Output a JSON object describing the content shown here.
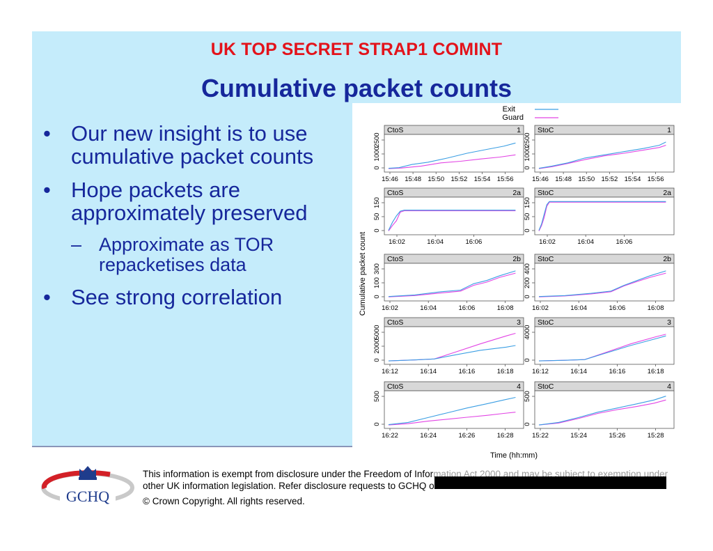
{
  "header": {
    "classification": "UK TOP SECRET STRAP1 COMINT",
    "title": "Cumulative packet counts"
  },
  "bullets": [
    {
      "text": "Our new insight is to use cumulative packet counts"
    },
    {
      "text": "Hope packets are approximately preserved",
      "sub": [
        {
          "text": "Approximate as TOR repacketises data"
        }
      ]
    },
    {
      "text": "See strong correlation"
    }
  ],
  "bullet_glyph": "•",
  "sub_bullet_glyph": "–",
  "chart_data": {
    "type": "line",
    "ylabel": "Cumulative packet count",
    "xlabel": "Time (hh:mm)",
    "legend": {
      "placement": "top-right",
      "entries": [
        {
          "name": "Exit",
          "color": "#3a9ee3"
        },
        {
          "name": "Guard",
          "color": "#e244e4"
        }
      ]
    },
    "grid": false,
    "panels": [
      {
        "left": "CtoS",
        "right": "1",
        "yticks": [
          "0",
          "1000",
          "2500"
        ],
        "xticks": [
          "15:46",
          "15:48",
          "15:50",
          "15:52",
          "15:54",
          "15:56"
        ],
        "exit": [
          [
            0,
            0.03
          ],
          [
            0.08,
            0.05
          ],
          [
            0.18,
            0.15
          ],
          [
            0.3,
            0.22
          ],
          [
            0.45,
            0.35
          ],
          [
            0.6,
            0.5
          ],
          [
            0.75,
            0.62
          ],
          [
            0.88,
            0.72
          ],
          [
            0.97,
            0.82
          ]
        ],
        "guard": [
          [
            0,
            0.02
          ],
          [
            0.1,
            0.04
          ],
          [
            0.25,
            0.1
          ],
          [
            0.4,
            0.2
          ],
          [
            0.55,
            0.25
          ],
          [
            0.7,
            0.32
          ],
          [
            0.85,
            0.38
          ],
          [
            0.97,
            0.45
          ]
        ]
      },
      {
        "left": "StoC",
        "right": "1",
        "yticks": [
          "0",
          "1000",
          "2500"
        ],
        "xticks": [
          "15:46",
          "15:48",
          "15:50",
          "15:52",
          "15:54",
          "15:56"
        ],
        "exit": [
          [
            0,
            0.03
          ],
          [
            0.1,
            0.1
          ],
          [
            0.22,
            0.2
          ],
          [
            0.35,
            0.35
          ],
          [
            0.5,
            0.45
          ],
          [
            0.65,
            0.55
          ],
          [
            0.8,
            0.65
          ],
          [
            0.92,
            0.75
          ],
          [
            0.97,
            0.85
          ]
        ],
        "guard": [
          [
            0,
            0.02
          ],
          [
            0.1,
            0.08
          ],
          [
            0.22,
            0.18
          ],
          [
            0.35,
            0.3
          ],
          [
            0.5,
            0.42
          ],
          [
            0.65,
            0.5
          ],
          [
            0.8,
            0.6
          ],
          [
            0.92,
            0.68
          ],
          [
            0.97,
            0.75
          ]
        ]
      },
      {
        "left": "CtoS",
        "right": "2a",
        "yticks": [
          "0",
          "50",
          "150"
        ],
        "xticks": [
          "16:02",
          "16:04",
          "16:06"
        ],
        "exit": [
          [
            0,
            0.05
          ],
          [
            0.03,
            0.3
          ],
          [
            0.06,
            0.5
          ],
          [
            0.09,
            0.65
          ],
          [
            0.12,
            0.68
          ],
          [
            0.97,
            0.68
          ]
        ],
        "guard": [
          [
            0,
            0.03
          ],
          [
            0.03,
            0.2
          ],
          [
            0.06,
            0.35
          ],
          [
            0.09,
            0.62
          ],
          [
            0.12,
            0.66
          ],
          [
            0.97,
            0.66
          ]
        ]
      },
      {
        "left": "StoC",
        "right": "2a",
        "yticks": [
          "0",
          "50",
          "150"
        ],
        "xticks": [
          "16:02",
          "16:04",
          "16:06"
        ],
        "exit": [
          [
            0,
            0.05
          ],
          [
            0.02,
            0.25
          ],
          [
            0.04,
            0.55
          ],
          [
            0.06,
            0.85
          ],
          [
            0.08,
            0.95
          ],
          [
            0.97,
            0.95
          ]
        ],
        "guard": [
          [
            0,
            0.03
          ],
          [
            0.02,
            0.2
          ],
          [
            0.04,
            0.45
          ],
          [
            0.06,
            0.8
          ],
          [
            0.08,
            0.93
          ],
          [
            0.97,
            0.93
          ]
        ]
      },
      {
        "left": "CtoS",
        "right": "2b",
        "yticks": [
          "0",
          "100",
          "300"
        ],
        "xticks": [
          "16:02",
          "16:04",
          "16:06",
          "16:08"
        ],
        "exit": [
          [
            0,
            0.05
          ],
          [
            0.2,
            0.1
          ],
          [
            0.4,
            0.2
          ],
          [
            0.55,
            0.25
          ],
          [
            0.65,
            0.45
          ],
          [
            0.75,
            0.55
          ],
          [
            0.85,
            0.7
          ],
          [
            0.97,
            0.85
          ]
        ],
        "guard": [
          [
            0,
            0.04
          ],
          [
            0.2,
            0.08
          ],
          [
            0.4,
            0.16
          ],
          [
            0.55,
            0.22
          ],
          [
            0.65,
            0.4
          ],
          [
            0.75,
            0.5
          ],
          [
            0.85,
            0.65
          ],
          [
            0.97,
            0.78
          ]
        ]
      },
      {
        "left": "StoC",
        "right": "2b",
        "yticks": [
          "0",
          "200",
          "400"
        ],
        "xticks": [
          "16:02",
          "16:04",
          "16:06",
          "16:08"
        ],
        "exit": [
          [
            0,
            0.05
          ],
          [
            0.2,
            0.08
          ],
          [
            0.4,
            0.15
          ],
          [
            0.55,
            0.22
          ],
          [
            0.65,
            0.4
          ],
          [
            0.75,
            0.55
          ],
          [
            0.85,
            0.7
          ],
          [
            0.97,
            0.85
          ]
        ],
        "guard": [
          [
            0,
            0.04
          ],
          [
            0.2,
            0.07
          ],
          [
            0.4,
            0.13
          ],
          [
            0.55,
            0.2
          ],
          [
            0.65,
            0.38
          ],
          [
            0.75,
            0.52
          ],
          [
            0.85,
            0.65
          ],
          [
            0.97,
            0.78
          ]
        ]
      },
      {
        "left": "CtoS",
        "right": "3",
        "yticks": [
          "0",
          "2000",
          "5000"
        ],
        "xticks": [
          "16:12",
          "16:14",
          "16:16",
          "16:18"
        ],
        "exit": [
          [
            0,
            0.02
          ],
          [
            0.2,
            0.05
          ],
          [
            0.35,
            0.08
          ],
          [
            0.5,
            0.2
          ],
          [
            0.7,
            0.35
          ],
          [
            0.9,
            0.45
          ],
          [
            0.97,
            0.5
          ]
        ],
        "guard": [
          [
            0,
            0.02
          ],
          [
            0.2,
            0.05
          ],
          [
            0.35,
            0.08
          ],
          [
            0.5,
            0.28
          ],
          [
            0.7,
            0.55
          ],
          [
            0.9,
            0.8
          ],
          [
            0.97,
            0.88
          ]
        ]
      },
      {
        "left": "StoC",
        "right": "3",
        "yticks": [
          "0",
          "4000"
        ],
        "xticks": [
          "16:12",
          "16:14",
          "16:16",
          "16:18"
        ],
        "exit": [
          [
            0,
            0.02
          ],
          [
            0.2,
            0.04
          ],
          [
            0.35,
            0.06
          ],
          [
            0.5,
            0.25
          ],
          [
            0.7,
            0.5
          ],
          [
            0.9,
            0.72
          ],
          [
            0.97,
            0.8
          ]
        ],
        "guard": [
          [
            0,
            0.02
          ],
          [
            0.2,
            0.04
          ],
          [
            0.35,
            0.06
          ],
          [
            0.5,
            0.27
          ],
          [
            0.7,
            0.55
          ],
          [
            0.9,
            0.78
          ],
          [
            0.97,
            0.85
          ]
        ]
      },
      {
        "left": "CtoS",
        "right": "4",
        "yticks": [
          "0",
          "500"
        ],
        "xticks": [
          "16:22",
          "16:24",
          "16:26",
          "16:28"
        ],
        "exit": [
          [
            0,
            0.03
          ],
          [
            0.15,
            0.1
          ],
          [
            0.3,
            0.25
          ],
          [
            0.45,
            0.4
          ],
          [
            0.6,
            0.55
          ],
          [
            0.75,
            0.68
          ],
          [
            0.88,
            0.8
          ],
          [
            0.97,
            0.88
          ]
        ],
        "guard": [
          [
            0,
            0.02
          ],
          [
            0.15,
            0.06
          ],
          [
            0.3,
            0.14
          ],
          [
            0.45,
            0.2
          ],
          [
            0.6,
            0.26
          ],
          [
            0.75,
            0.32
          ],
          [
            0.88,
            0.38
          ],
          [
            0.97,
            0.42
          ]
        ]
      },
      {
        "left": "StoC",
        "right": "4",
        "yticks": [
          "0",
          "500"
        ],
        "xticks": [
          "15:22",
          "15:24",
          "15:26",
          "15:28"
        ],
        "exit": [
          [
            0,
            0.02
          ],
          [
            0.15,
            0.1
          ],
          [
            0.3,
            0.25
          ],
          [
            0.45,
            0.42
          ],
          [
            0.6,
            0.55
          ],
          [
            0.75,
            0.68
          ],
          [
            0.88,
            0.8
          ],
          [
            0.97,
            0.92
          ]
        ],
        "guard": [
          [
            0,
            0.02
          ],
          [
            0.15,
            0.08
          ],
          [
            0.3,
            0.22
          ],
          [
            0.45,
            0.38
          ],
          [
            0.6,
            0.5
          ],
          [
            0.75,
            0.6
          ],
          [
            0.88,
            0.7
          ],
          [
            0.97,
            0.8
          ]
        ]
      }
    ]
  },
  "footer": {
    "logo_text": "GCHQ",
    "notice_line1_a": "This information is exempt from disclosure under the Freedom of Infor",
    "notice_line1_b": "mation Act 2000 and may be subject to exemption under",
    "notice_line2": "other UK information legislation. Refer disclosure requests to GCHQ or",
    "copyright": "© Crown Copyright. All rights reserved."
  }
}
